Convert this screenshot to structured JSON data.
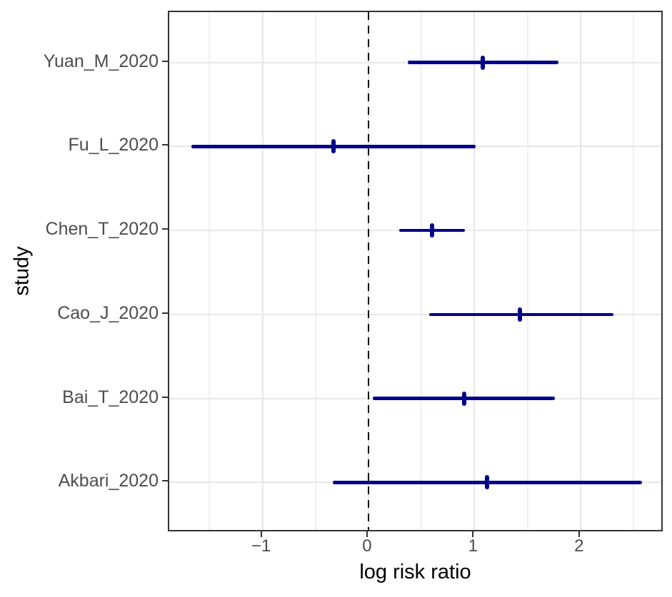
{
  "figure": {
    "x_axis_title": "log risk ratio",
    "y_axis_title": "study"
  },
  "chart_data": {
    "type": "scatter",
    "subtype": "forest-plot",
    "title": "",
    "xlabel": "log risk ratio",
    "ylabel": "study",
    "xlim": [
      -1.88,
      2.79
    ],
    "x_major_ticks": [
      -1,
      0,
      1,
      2
    ],
    "x_tick_labels": [
      "−1",
      "0",
      "1",
      "2"
    ],
    "x_minor_ticks": [
      -1.5,
      -0.5,
      0.5,
      1.5,
      2.5
    ],
    "grid": true,
    "legend": false,
    "reference_line": {
      "x": 0,
      "style": "dashed"
    },
    "studies": [
      {
        "label": "Yuan_M_2020",
        "estimate": 1.08,
        "ci_lower": 0.37,
        "ci_upper": 1.79
      },
      {
        "label": "Fu_L_2020",
        "estimate": -0.33,
        "ci_lower": -1.67,
        "ci_upper": 1.01
      },
      {
        "label": "Chen_T_2020",
        "estimate": 0.6,
        "ci_lower": 0.29,
        "ci_upper": 0.91
      },
      {
        "label": "Cao_J_2020",
        "estimate": 1.43,
        "ci_lower": 0.57,
        "ci_upper": 2.31
      },
      {
        "label": "Bai_T_2020",
        "estimate": 0.9,
        "ci_lower": 0.04,
        "ci_upper": 1.76
      },
      {
        "label": "Akbari_2020",
        "estimate": 1.12,
        "ci_lower": -0.34,
        "ci_upper": 2.58
      }
    ],
    "colors": {
      "series": "#00008B",
      "reference_line": "#0d0d0d",
      "grid_major": "#e8e8e8",
      "grid_minor": "#f0f0f0",
      "panel_border": "#333333",
      "tick_mark": "#333333",
      "axis_text": "#4d4d4d",
      "axis_title": "#000000",
      "background": "#ffffff"
    }
  }
}
